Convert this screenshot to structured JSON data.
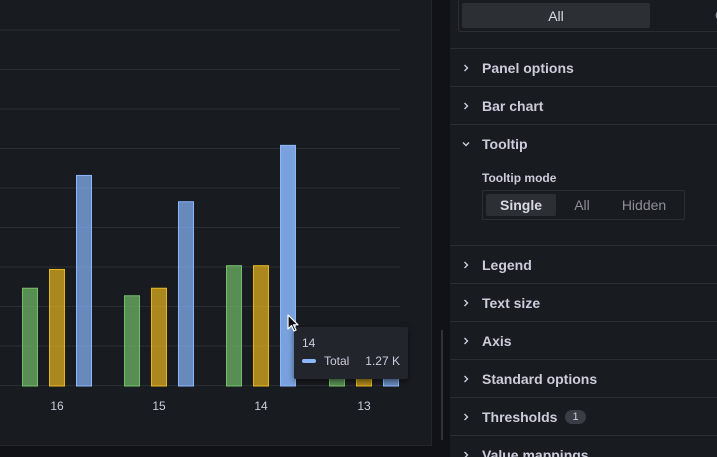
{
  "chart_data": {
    "type": "bar",
    "categories": [
      "16",
      "15",
      "14",
      "13"
    ],
    "series": [
      {
        "color": "#73bf69",
        "values": [
          0.26,
          0.24,
          0.32,
          0.1
        ]
      },
      {
        "color": "#e8b71c",
        "values": [
          0.31,
          0.26,
          0.32,
          0.1
        ]
      },
      {
        "name": "Total",
        "color": "#8ab8ff",
        "values": [
          0.56,
          0.49,
          0.64,
          0.1
        ]
      }
    ],
    "ylim": [
      0,
      1
    ],
    "grid": true
  },
  "tooltip": {
    "title": "14",
    "series_name": "Total",
    "value": "1.27 K",
    "swatch_color": "#8ab8ff"
  },
  "options": {
    "top_segment": {
      "active": "All",
      "other": "O"
    },
    "sections": [
      {
        "label": "Panel options",
        "expanded": false
      },
      {
        "label": "Bar chart",
        "expanded": false
      },
      {
        "label": "Tooltip",
        "expanded": true
      },
      {
        "label": "Legend",
        "expanded": false
      },
      {
        "label": "Text size",
        "expanded": false
      },
      {
        "label": "Axis",
        "expanded": false
      },
      {
        "label": "Standard options",
        "expanded": false
      },
      {
        "label": "Thresholds",
        "expanded": false,
        "badge": "1"
      },
      {
        "label": "Value mappings",
        "expanded": false
      }
    ],
    "tooltip_mode": {
      "label": "Tooltip mode",
      "options": [
        "Single",
        "All",
        "Hidden"
      ],
      "selected": "Single"
    }
  },
  "icons": {
    "chevron_right": "chevron-right-icon",
    "chevron_down": "chevron-down-icon",
    "cursor": "mouse-pointer-icon"
  }
}
